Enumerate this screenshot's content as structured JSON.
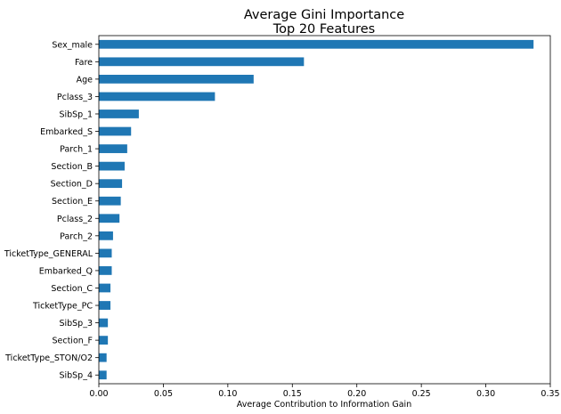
{
  "chart_data": {
    "type": "bar",
    "orientation": "horizontal",
    "title": "Average Gini Importance",
    "subtitle": "Top 20 Features",
    "xlabel": "Average Contribution to Information Gain",
    "ylabel": "",
    "xlim": [
      0,
      0.35
    ],
    "xticks": [
      "0.00",
      "0.05",
      "0.10",
      "0.15",
      "0.20",
      "0.25",
      "0.30",
      "0.35"
    ],
    "grid": false,
    "bar_color": "#1f77b4",
    "categories": [
      "Sex_male",
      "Fare",
      "Age",
      "Pclass_3",
      "SibSp_1",
      "Embarked_S",
      "Parch_1",
      "Section_B",
      "Section_D",
      "Section_E",
      "Pclass_2",
      "Parch_2",
      "TicketType_GENERAL",
      "Embarked_Q",
      "Section_C",
      "TicketType_PC",
      "SibSp_3",
      "Section_F",
      "TicketType_STON/O2",
      "SibSp_4"
    ],
    "values": [
      0.337,
      0.159,
      0.12,
      0.09,
      0.031,
      0.025,
      0.022,
      0.02,
      0.018,
      0.017,
      0.016,
      0.011,
      0.01,
      0.01,
      0.009,
      0.009,
      0.007,
      0.007,
      0.006,
      0.006
    ]
  }
}
